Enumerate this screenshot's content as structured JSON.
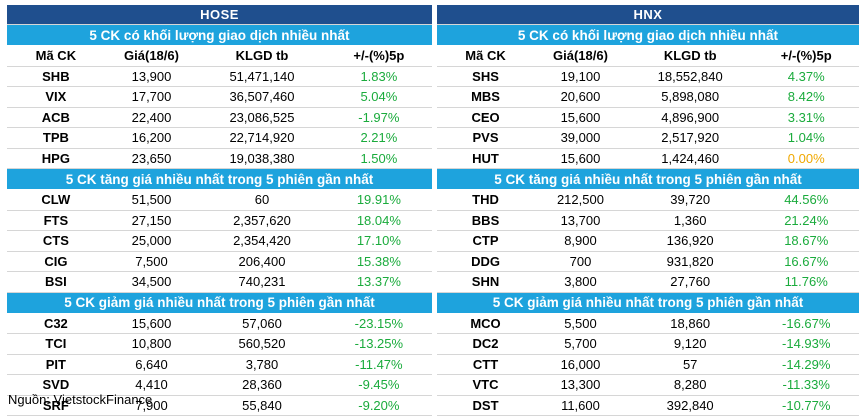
{
  "hose": {
    "exchange": "HOSE",
    "columns": [
      "Mã CK",
      "Giá(18/6)",
      "KLGD tb",
      "+/-(%)5p"
    ],
    "sections": [
      {
        "title": "5 CK có khối lượng giao dịch nhiều nhất",
        "rows": [
          {
            "code": "SHB",
            "price": "13,900",
            "vol": "51,471,140",
            "chg": "1.83%"
          },
          {
            "code": "VIX",
            "price": "17,700",
            "vol": "36,507,460",
            "chg": "5.04%"
          },
          {
            "code": "ACB",
            "price": "22,400",
            "vol": "23,086,525",
            "chg": "-1.97%"
          },
          {
            "code": "TPB",
            "price": "16,200",
            "vol": "22,714,920",
            "chg": "2.21%"
          },
          {
            "code": "HPG",
            "price": "23,650",
            "vol": "19,038,380",
            "chg": "1.50%"
          }
        ]
      },
      {
        "title": "5 CK tăng giá nhiều nhất trong 5 phiên gần nhất",
        "rows": [
          {
            "code": "CLW",
            "price": "51,500",
            "vol": "60",
            "chg": "19.91%"
          },
          {
            "code": "FTS",
            "price": "27,150",
            "vol": "2,357,620",
            "chg": "18.04%"
          },
          {
            "code": "CTS",
            "price": "25,000",
            "vol": "2,354,420",
            "chg": "17.10%"
          },
          {
            "code": "CIG",
            "price": "7,500",
            "vol": "206,400",
            "chg": "15.38%"
          },
          {
            "code": "BSI",
            "price": "34,500",
            "vol": "740,231",
            "chg": "13.37%"
          }
        ]
      },
      {
        "title": "5 CK giảm giá nhiều nhất trong 5 phiên gần nhất",
        "rows": [
          {
            "code": "C32",
            "price": "15,600",
            "vol": "57,060",
            "chg": "-23.15%"
          },
          {
            "code": "TCI",
            "price": "10,800",
            "vol": "560,520",
            "chg": "-13.25%"
          },
          {
            "code": "PIT",
            "price": "6,640",
            "vol": "3,780",
            "chg": "-11.47%"
          },
          {
            "code": "SVD",
            "price": "4,410",
            "vol": "28,360",
            "chg": "-9.45%"
          },
          {
            "code": "SRF",
            "price": "7,900",
            "vol": "55,840",
            "chg": "-9.20%"
          }
        ]
      }
    ]
  },
  "hnx": {
    "exchange": "HNX",
    "columns": [
      "Mã CK",
      "Giá(18/6)",
      "KLGD tb",
      "+/-(%)5p"
    ],
    "sections": [
      {
        "title": "5 CK có khối lượng giao dịch nhiều nhất",
        "rows": [
          {
            "code": "SHS",
            "price": "19,100",
            "vol": "18,552,840",
            "chg": "4.37%"
          },
          {
            "code": "MBS",
            "price": "20,600",
            "vol": "5,898,080",
            "chg": "8.42%"
          },
          {
            "code": "CEO",
            "price": "15,600",
            "vol": "4,896,900",
            "chg": "3.31%"
          },
          {
            "code": "PVS",
            "price": "39,000",
            "vol": "2,517,920",
            "chg": "1.04%"
          },
          {
            "code": "HUT",
            "price": "15,600",
            "vol": "1,424,460",
            "chg": "0.00%"
          }
        ]
      },
      {
        "title": "5 CK tăng giá nhiều nhất trong 5 phiên gần nhất",
        "rows": [
          {
            "code": "THD",
            "price": "212,500",
            "vol": "39,720",
            "chg": "44.56%"
          },
          {
            "code": "BBS",
            "price": "13,700",
            "vol": "1,360",
            "chg": "21.24%"
          },
          {
            "code": "CTP",
            "price": "8,900",
            "vol": "136,920",
            "chg": "18.67%"
          },
          {
            "code": "DDG",
            "price": "700",
            "vol": "931,820",
            "chg": "16.67%"
          },
          {
            "code": "SHN",
            "price": "3,800",
            "vol": "27,760",
            "chg": "11.76%"
          }
        ]
      },
      {
        "title": "5 CK giảm giá nhiều nhất trong 5 phiên gần nhất",
        "rows": [
          {
            "code": "MCO",
            "price": "5,500",
            "vol": "18,860",
            "chg": "-16.67%"
          },
          {
            "code": "DC2",
            "price": "5,700",
            "vol": "9,120",
            "chg": "-14.93%"
          },
          {
            "code": "CTT",
            "price": "16,000",
            "vol": "57",
            "chg": "-14.29%"
          },
          {
            "code": "VTC",
            "price": "13,300",
            "vol": "8,280",
            "chg": "-11.33%"
          },
          {
            "code": "DST",
            "price": "11,600",
            "vol": "392,840",
            "chg": "-10.77%"
          }
        ]
      }
    ]
  },
  "colors": {
    "exchange_header": "#1f4f8e",
    "section_header": "#1ea3dd",
    "change_value": "#1aab3c",
    "change_flat": "#f0a800"
  },
  "source": "Nguồn: VietstockFinance"
}
